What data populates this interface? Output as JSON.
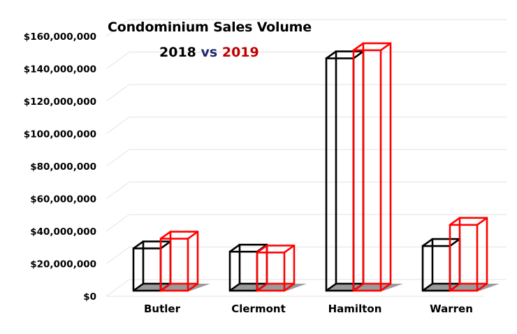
{
  "title": {
    "line1": "Condominium Sales Volume",
    "year_a": "2018",
    "vs": "vs",
    "year_b": "2019",
    "vs_color": "#1f2a6b",
    "year_b_color": "#c00000"
  },
  "chart_data": {
    "type": "bar",
    "style": "3d-wireframe-column",
    "title": "Condominium Sales Volume 2018 vs 2019",
    "categories": [
      "Butler",
      "Clermont",
      "Hamilton",
      "Warren"
    ],
    "series": [
      {
        "name": "2018",
        "color": "#000000",
        "values": [
          26000000,
          24000000,
          143000000,
          27500000
        ]
      },
      {
        "name": "2019",
        "color": "#ff0000",
        "values": [
          32000000,
          23500000,
          148000000,
          40500000
        ]
      }
    ],
    "ylim": [
      0,
      160000000
    ],
    "yticks": [
      0,
      20000000,
      40000000,
      60000000,
      80000000,
      100000000,
      120000000,
      140000000,
      160000000
    ],
    "ytick_labels": [
      "$0",
      "$20,000,000",
      "$40,000,000",
      "$60,000,000",
      "$80,000,000",
      "$100,000,000",
      "$120,000,000",
      "$140,000,000",
      "$160,000,000"
    ],
    "xlabel": "",
    "ylabel": "",
    "grid": true,
    "legend": "none"
  }
}
